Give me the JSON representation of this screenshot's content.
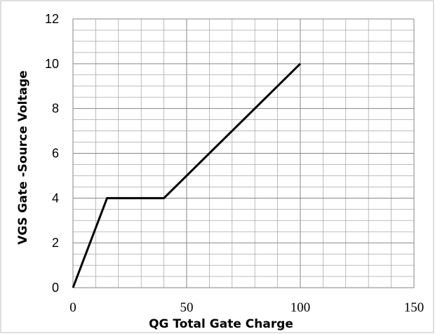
{
  "chart_data": {
    "type": "line",
    "title": "",
    "xlabel": "QG Total Gate Charge",
    "ylabel": "VGS  Gate -Source Voltage",
    "xlim": [
      0,
      150
    ],
    "ylim": [
      0,
      12
    ],
    "x_major_ticks": [
      0,
      50,
      100,
      150
    ],
    "y_major_ticks": [
      0,
      2,
      4,
      6,
      8,
      10,
      12
    ],
    "x_minor_step": 10,
    "y_minor_step": 0.5,
    "grid": true,
    "legend": "none",
    "series": [
      {
        "color": "#000000",
        "x": [
          0,
          15,
          40,
          100
        ],
        "y": [
          0,
          4,
          4,
          10
        ]
      }
    ]
  }
}
